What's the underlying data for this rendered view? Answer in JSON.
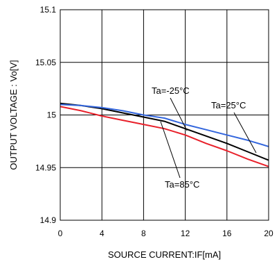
{
  "chart_data": {
    "type": "line",
    "title": "",
    "xlabel": "SOURCE CURRENT:IF[mA]",
    "ylabel": "OUTPUT VOLTAGE : Vo[V]",
    "xlim": [
      0,
      20
    ],
    "ylim": [
      14.9,
      15.1
    ],
    "x_ticks": [
      "0",
      "4",
      "8",
      "12",
      "16",
      "20"
    ],
    "y_ticks": [
      "14.9",
      "14.95",
      "15",
      "15.05",
      "15.1"
    ],
    "grid": true,
    "legend": "none",
    "series": [
      {
        "name": "Ta=-25°C",
        "color": "#000000",
        "x": [
          0,
          2,
          4,
          6,
          8,
          10,
          12,
          14,
          16,
          18,
          20
        ],
        "y": [
          15.011,
          15.009,
          15.006,
          15.002,
          14.998,
          14.994,
          14.987,
          14.98,
          14.973,
          14.965,
          14.957
        ]
      },
      {
        "name": "Ta=25°C",
        "color": "#3366dd",
        "x": [
          0,
          2,
          4,
          6,
          8,
          10,
          12,
          14,
          16,
          18,
          20
        ],
        "y": [
          15.01,
          15.009,
          15.007,
          15.004,
          15.0,
          14.997,
          14.991,
          14.986,
          14.981,
          14.976,
          14.97
        ]
      },
      {
        "name": "Ta=85°C",
        "color": "#e8202a",
        "x": [
          0,
          2,
          4,
          6,
          8,
          10,
          12,
          14,
          16,
          18,
          20
        ],
        "y": [
          15.008,
          15.004,
          14.999,
          14.995,
          14.991,
          14.987,
          14.981,
          14.973,
          14.966,
          14.958,
          14.951
        ]
      }
    ],
    "annotations": [
      {
        "text": "Ta=-25°C",
        "series": "Ta=-25°C"
      },
      {
        "text": "Ta=25°C",
        "series": "Ta=25°C"
      },
      {
        "text": "Ta=85°C",
        "series": "Ta=85°C"
      }
    ]
  }
}
